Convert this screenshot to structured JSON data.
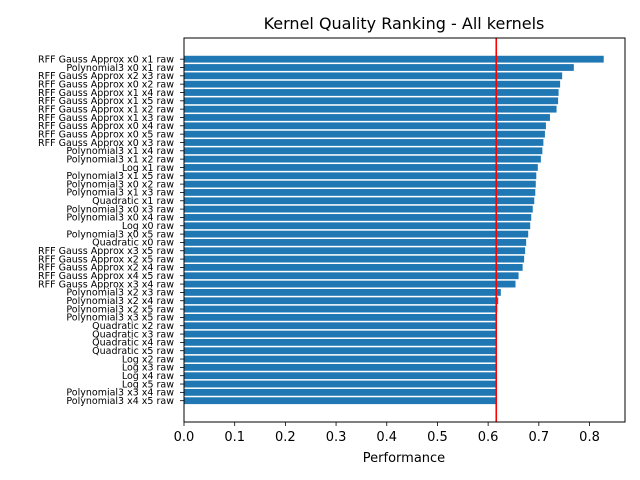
{
  "chart_data": {
    "type": "bar",
    "orientation": "horizontal",
    "title": "Kernel Quality Ranking  - All kernels",
    "xlabel": "Performance",
    "ylabel": "",
    "xlim": [
      0,
      0.87
    ],
    "x_ticks": [
      "0.0",
      "0.1",
      "0.2",
      "0.3",
      "0.4",
      "0.5",
      "0.6",
      "0.7",
      "0.8"
    ],
    "bar_color": "#1f77b4",
    "threshold": 0.616,
    "threshold_color": "#ff0000",
    "grid": false,
    "categories": [
      "RFF Gauss Approx x0 x1 raw",
      "Polynomial3 x0 x1 raw",
      "RFF Gauss Approx x2 x3 raw",
      "RFF Gauss Approx x0 x2 raw",
      "RFF Gauss Approx x1 x4 raw",
      "RFF Gauss Approx x1 x5 raw",
      "RFF Gauss Approx x1 x2 raw",
      "RFF Gauss Approx x1 x3 raw",
      "RFF Gauss Approx x0 x4 raw",
      "RFF Gauss Approx x0 x5 raw",
      "RFF Gauss Approx x0 x3 raw",
      "Polynomial3 x1 x4 raw",
      "Polynomial3 x1 x2 raw",
      "Log x1 raw",
      "Polynomial3 x1 x5 raw",
      "Polynomial3 x0 x2 raw",
      "Polynomial3 x1 x3 raw",
      "Quadratic x1 raw",
      "Polynomial3 x0 x3 raw",
      "Polynomial3 x0 x4 raw",
      "Log x0 raw",
      "Polynomial3 x0 x5 raw",
      "Quadratic x0 raw",
      "RFF Gauss Approx x3 x5 raw",
      "RFF Gauss Approx x2 x5 raw",
      "RFF Gauss Approx x2 x4 raw",
      "RFF Gauss Approx x4 x5 raw",
      "RFF Gauss Approx x3 x4 raw",
      "Polynomial3 x2 x3 raw",
      "Polynomial3 x2 x4 raw",
      "Polynomial3 x2 x5 raw",
      "Polynomial3 x3 x5 raw",
      "Quadratic x2 raw",
      "Quadratic x3 raw",
      "Quadratic x4 raw",
      "Quadratic x5 raw",
      "Log x2 raw",
      "Log x3 raw",
      "Log x4 raw",
      "Log x5 raw",
      "Polynomial3 x3 x4 raw",
      "Polynomial3 x4 x5 raw"
    ],
    "values": [
      0.828,
      0.769,
      0.746,
      0.742,
      0.739,
      0.738,
      0.735,
      0.722,
      0.714,
      0.712,
      0.709,
      0.707,
      0.704,
      0.698,
      0.695,
      0.694,
      0.693,
      0.691,
      0.688,
      0.685,
      0.683,
      0.679,
      0.675,
      0.673,
      0.671,
      0.668,
      0.66,
      0.654,
      0.625,
      0.62,
      0.618,
      0.617,
      0.616,
      0.616,
      0.616,
      0.616,
      0.616,
      0.616,
      0.616,
      0.616,
      0.616,
      0.616
    ]
  }
}
